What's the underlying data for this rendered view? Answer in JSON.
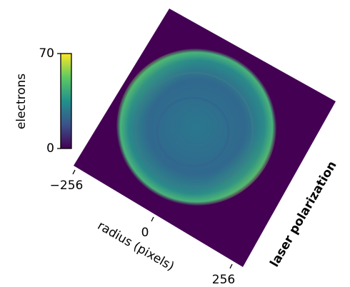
{
  "chart_data": {
    "type": "image",
    "colorbar": {
      "label": "electrons",
      "ylim": [
        0,
        70
      ],
      "yticks": [
        0,
        70
      ]
    },
    "xlabel": "radius (pixels)",
    "xlim": [
      -256,
      256
    ],
    "xticks": [
      {
        "value": -256,
        "label": "−256"
      },
      0,
      256
    ],
    "ylabel": "laser polarization"
  }
}
